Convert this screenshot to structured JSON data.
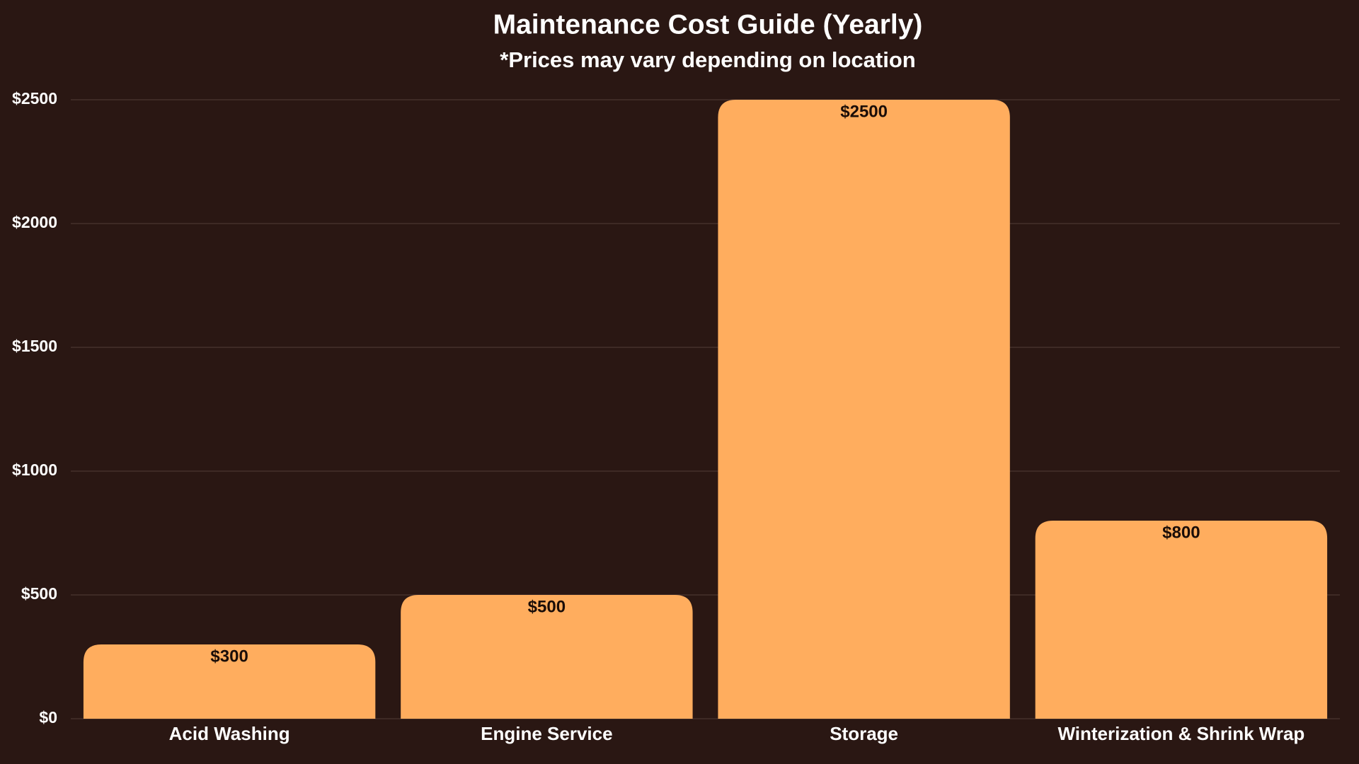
{
  "chart_data": {
    "type": "bar",
    "title": "Maintenance Cost Guide (Yearly)",
    "subtitle": "*Prices may vary depending on location",
    "categories": [
      "Acid Washing",
      "Engine Service",
      "Storage",
      "Winterization & Shrink Wrap"
    ],
    "values": [
      300,
      500,
      2500,
      800
    ],
    "value_labels": [
      "$300",
      "$500",
      "$2500",
      "$800"
    ],
    "color": "#ffad5e",
    "ylim": [
      0,
      2500
    ],
    "yticks": [
      {
        "value": 0,
        "label": "$0"
      },
      {
        "value": 500,
        "label": "$500"
      },
      {
        "value": 1000,
        "label": "$1000"
      },
      {
        "value": 1500,
        "label": "$1500"
      },
      {
        "value": 2000,
        "label": "$2000"
      },
      {
        "value": 2500,
        "label": "$2500"
      }
    ],
    "grid": true
  }
}
